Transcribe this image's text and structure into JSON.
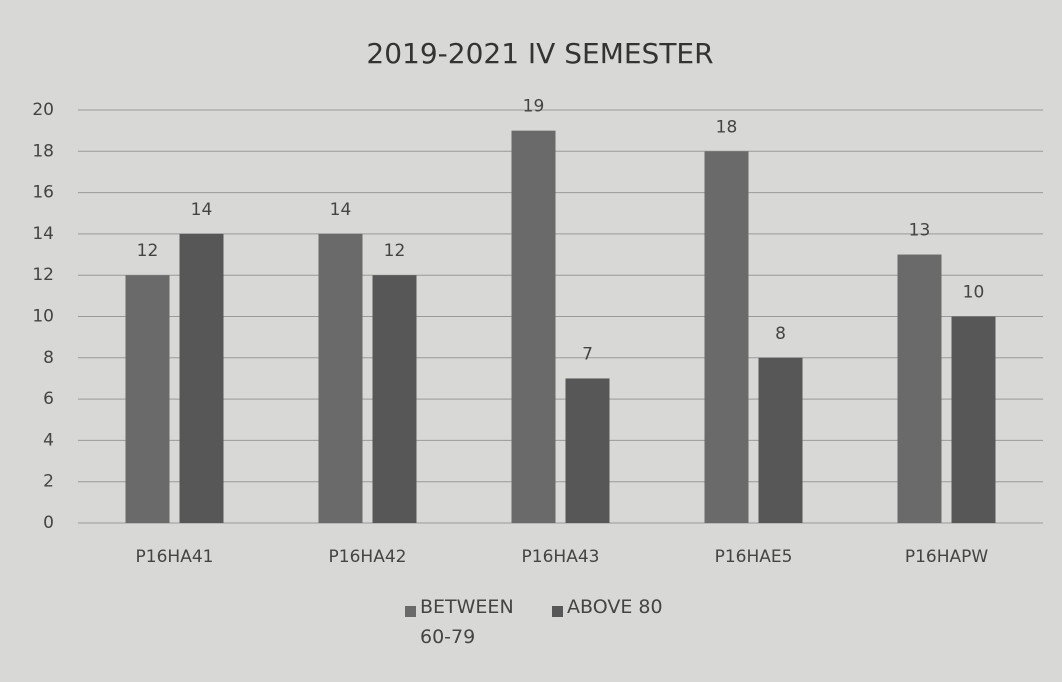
{
  "chart_data": {
    "type": "bar",
    "title": "2019-2021  IV SEMESTER",
    "categories": [
      "P16HA41",
      "P16HA42",
      "P16HA43",
      "P16HAE5",
      "P16HAPW"
    ],
    "series": [
      {
        "name": "BETWEEN 60-79",
        "color": "#6a6a6a",
        "values": [
          12,
          14,
          19,
          18,
          13
        ]
      },
      {
        "name": "ABOVE 80",
        "color": "#575757",
        "values": [
          14,
          12,
          7,
          8,
          10
        ]
      }
    ],
    "ylim": [
      0,
      20
    ],
    "yticks": [
      0,
      2,
      4,
      6,
      8,
      10,
      12,
      14,
      16,
      18,
      20
    ],
    "grid": true,
    "legend": "bottom"
  }
}
